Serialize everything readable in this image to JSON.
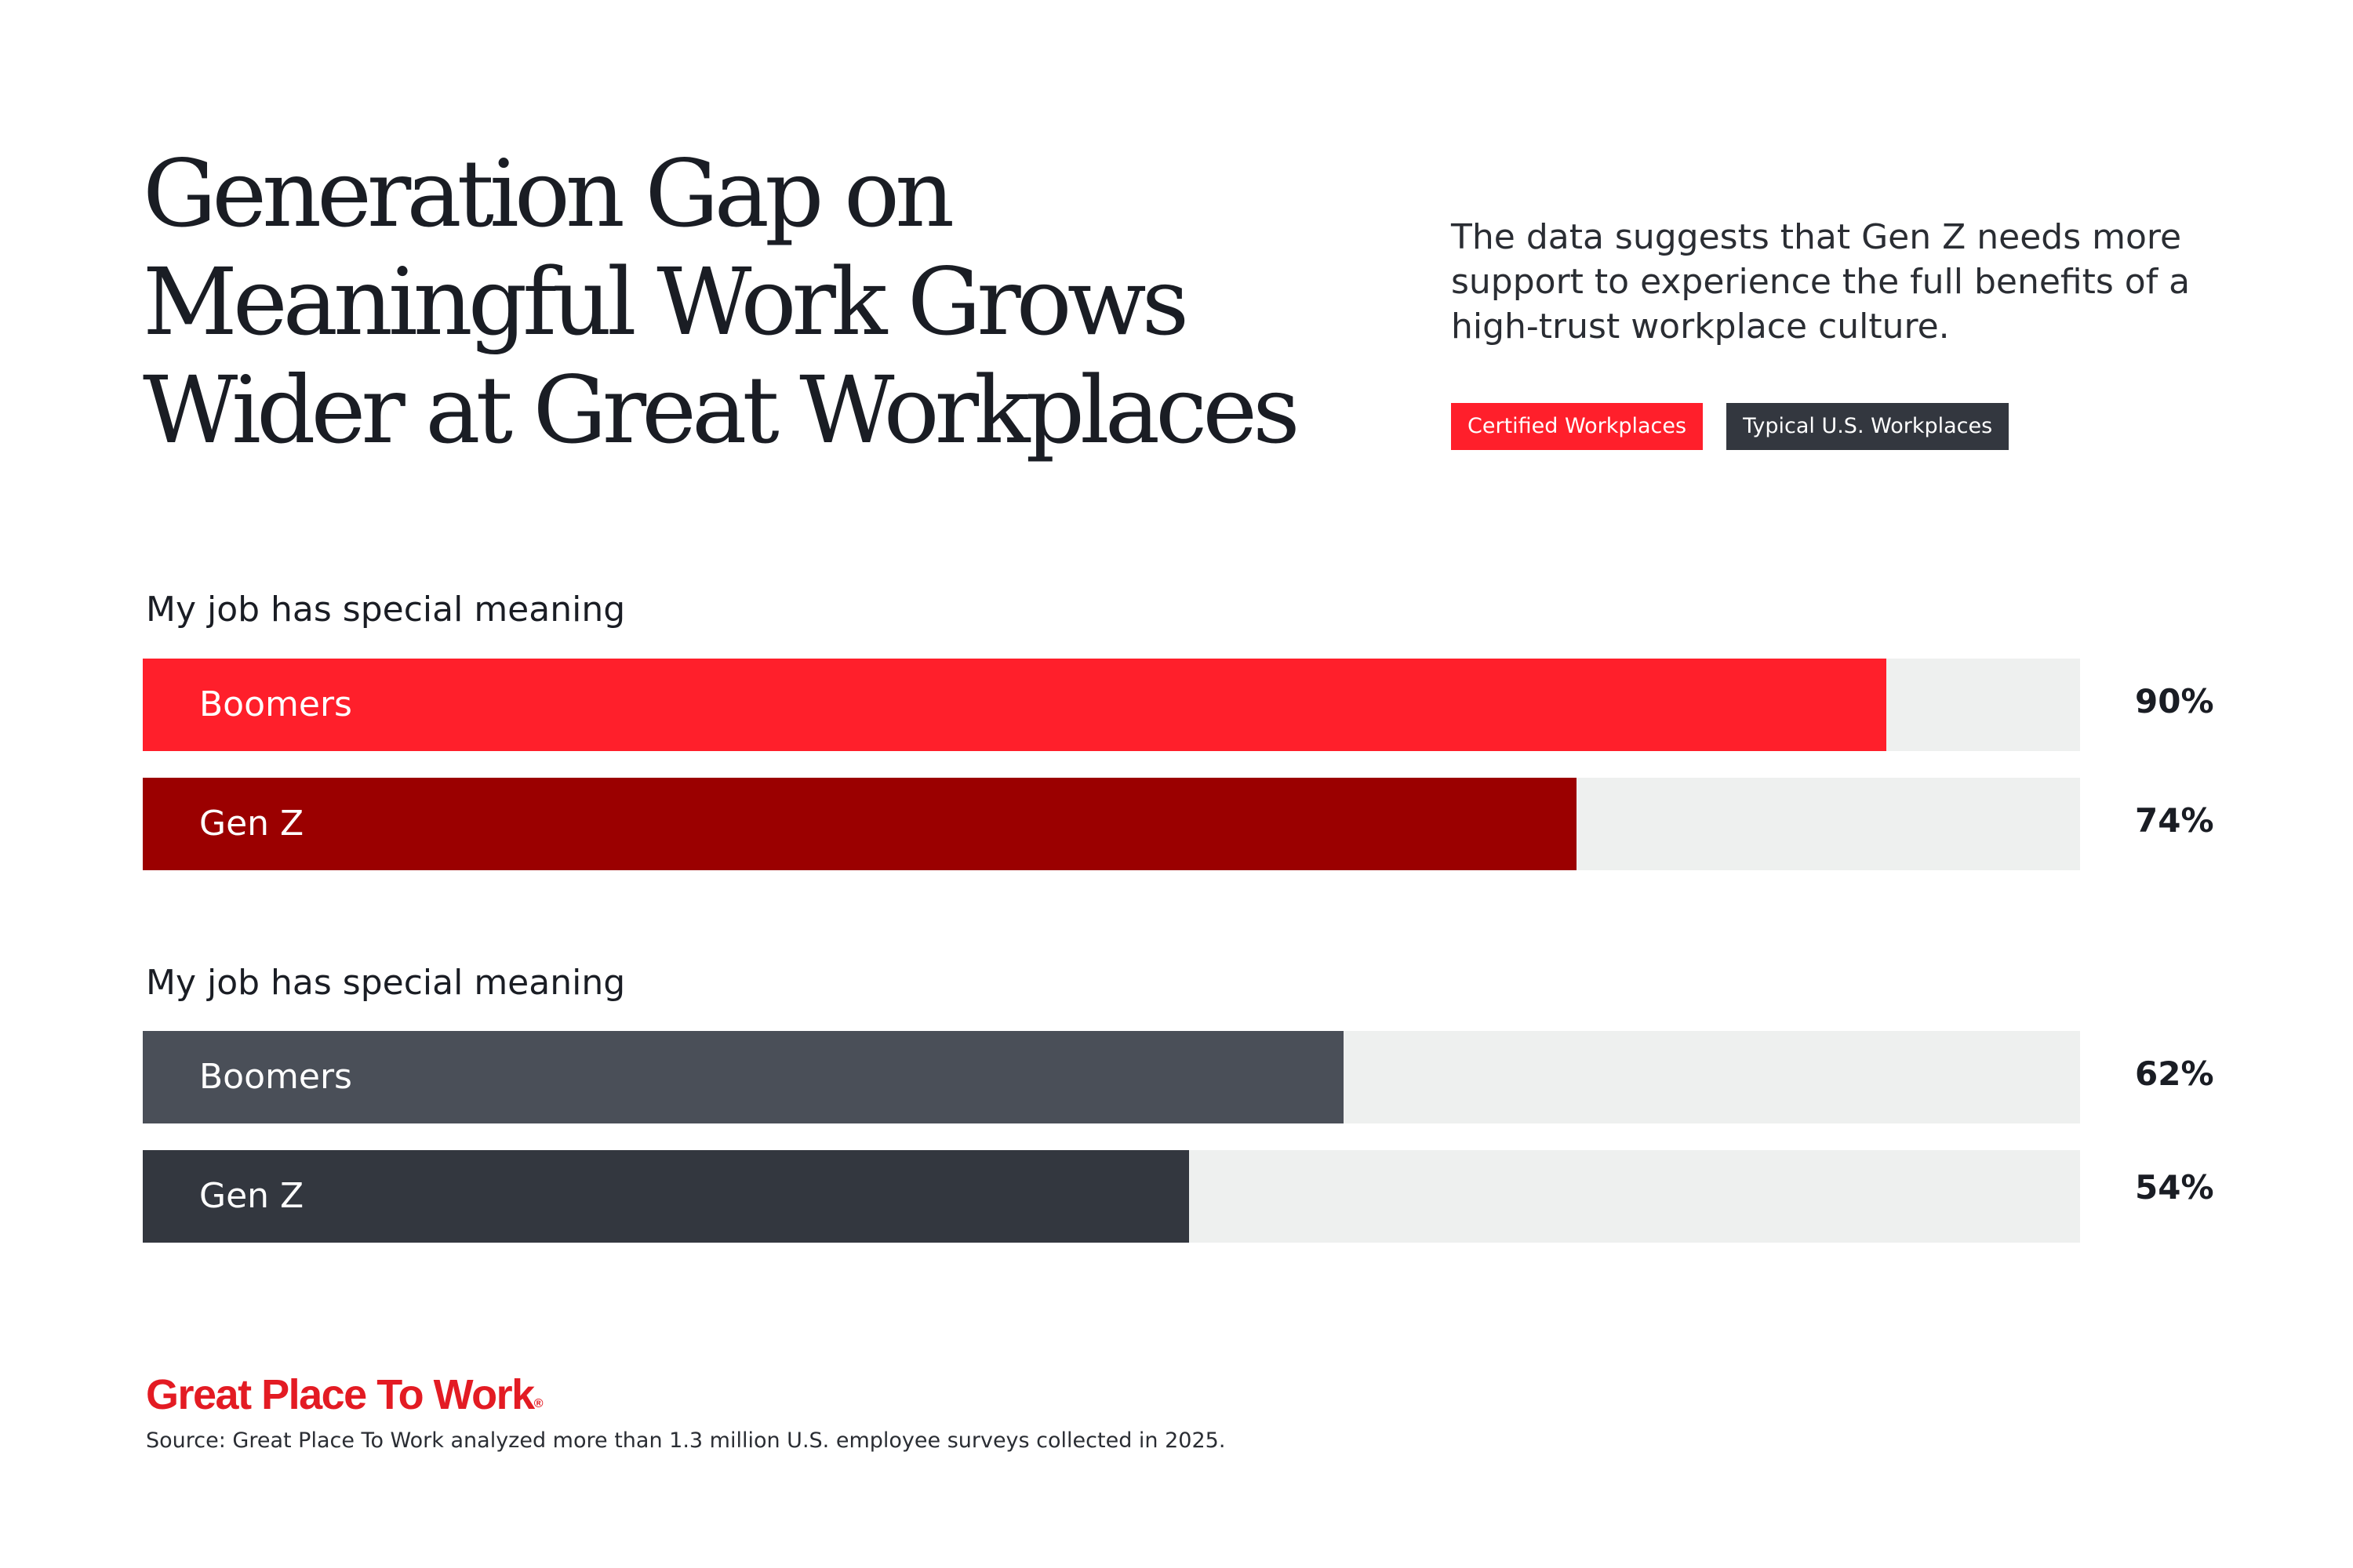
{
  "header": {
    "title_lines": [
      "Generation Gap on",
      "Meaningful Work Grows",
      "Wider at Great Workplaces"
    ],
    "subtitle": "The data suggests that Gen Z needs more support to experience the full benefits of a high-trust workplace culture."
  },
  "legend": [
    {
      "label": "Certified Workplaces",
      "color": "#ff1f2b"
    },
    {
      "label": "Typical U.S. Workplaces",
      "color": "#33373f"
    }
  ],
  "chart_data": {
    "type": "bar",
    "orientation": "horizontal",
    "xlim": [
      0,
      100
    ],
    "unit": "%",
    "groups": [
      {
        "label": "My job has special meaning",
        "legend": "Certified Workplaces",
        "bars": [
          {
            "category": "Boomers",
            "value": 90,
            "display": "90%",
            "color": "#ff1f2b"
          },
          {
            "category": "Gen Z",
            "value": 74,
            "display": "74%",
            "color": "#9b0000"
          }
        ]
      },
      {
        "label": "My job has special meaning",
        "legend": "Typical U.S. Workplaces",
        "bars": [
          {
            "category": "Boomers",
            "value": 62,
            "display": "62%",
            "color": "#4a4f58"
          },
          {
            "category": "Gen Z",
            "value": 54,
            "display": "54%",
            "color": "#33373f"
          }
        ]
      }
    ],
    "track_color": "#eef0ef"
  },
  "footer": {
    "brand": "Great Place To Work",
    "brand_mark": "®",
    "brand_color": "#e31b23",
    "source": "Source: Great Place To Work analyzed more than 1.3 million U.S. employee surveys collected in 2025."
  }
}
